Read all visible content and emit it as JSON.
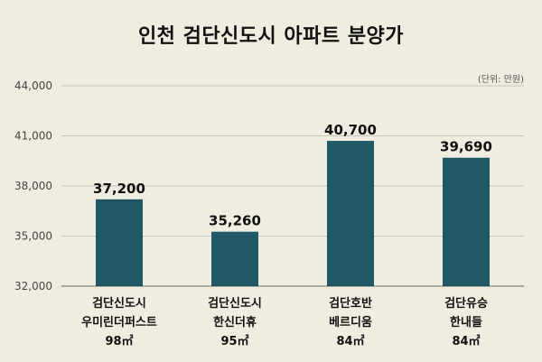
{
  "chart_data": {
    "type": "bar",
    "title": "인천 검단신도시 아파트 분양가",
    "unit_note": "(단위: 만원)",
    "categories": [
      [
        "검단신도시",
        "우미린더퍼스트",
        "98㎡"
      ],
      [
        "검단신도시",
        "한신더휴",
        "95㎡"
      ],
      [
        "검단호반",
        "베르디움",
        "84㎡"
      ],
      [
        "검단유승",
        "한내들",
        "84㎡"
      ]
    ],
    "values": [
      37200,
      35260,
      40700,
      39690
    ],
    "value_labels": [
      "37,200",
      "35,260",
      "40,700",
      "39,690"
    ],
    "ylim": [
      32000,
      44000
    ],
    "yticks": [
      32000,
      35000,
      38000,
      41000,
      44000
    ],
    "ytick_labels": [
      "32,000",
      "35,000",
      "38,000",
      "41,000",
      "44,000"
    ],
    "bar_color": "#225866",
    "grid": true
  }
}
